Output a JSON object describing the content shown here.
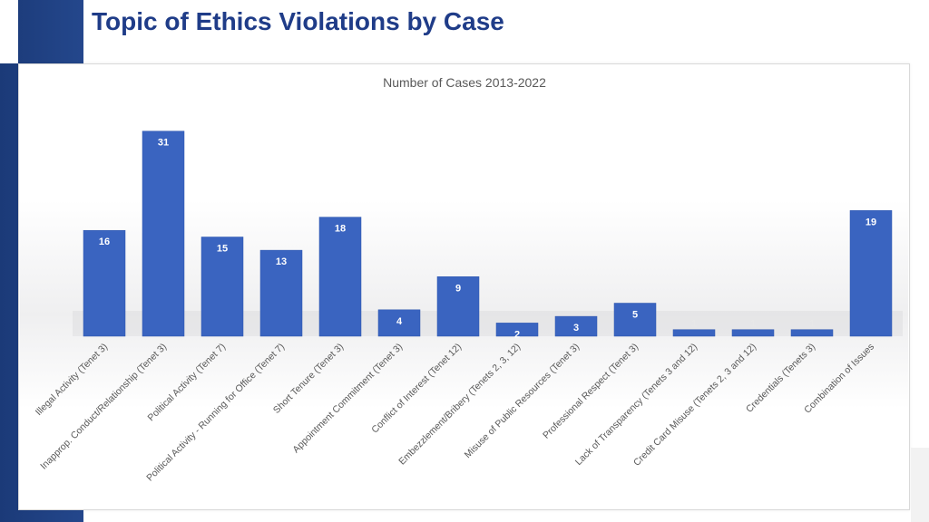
{
  "page": {
    "title": "Topic of Ethics Violations by Case"
  },
  "colors": {
    "bar": "#3a64c0",
    "title": "#1f3c88",
    "band": "#24478c"
  },
  "chart_data": {
    "type": "bar",
    "title": "Number of Cases 2013-2022",
    "xlabel": "",
    "ylabel": "",
    "ylim": [
      0,
      35
    ],
    "grid": false,
    "legend": "none",
    "categories": [
      "Illegal Activity (Tenet 3)",
      "Inapprop. Conduct/Relationship (Tenet 3)",
      "Political Activity (Tenet 7)",
      "Political Activity - Running for Office (Tenet 7)",
      "Short Tenure (Tenet 3)",
      "Appointment Commitment (Tenet 3)",
      "Conflict of Interest (Tenet 12)",
      "Embezzlement/Bribery (Tenets 2, 3, 12)",
      "Misuse of Public Resources (Tenet 3)",
      "Professional Respect (Tenet 3)",
      "Lack of Transparency (Tenets 3 and 12)",
      "Credit Card Misuse (Tenets 2, 3 and 12)",
      "Credentials (Tenets 3)",
      "Combination of Issues"
    ],
    "values": [
      16,
      31,
      15,
      13,
      18,
      4,
      9,
      2,
      3,
      5,
      1,
      1,
      1,
      19
    ]
  }
}
